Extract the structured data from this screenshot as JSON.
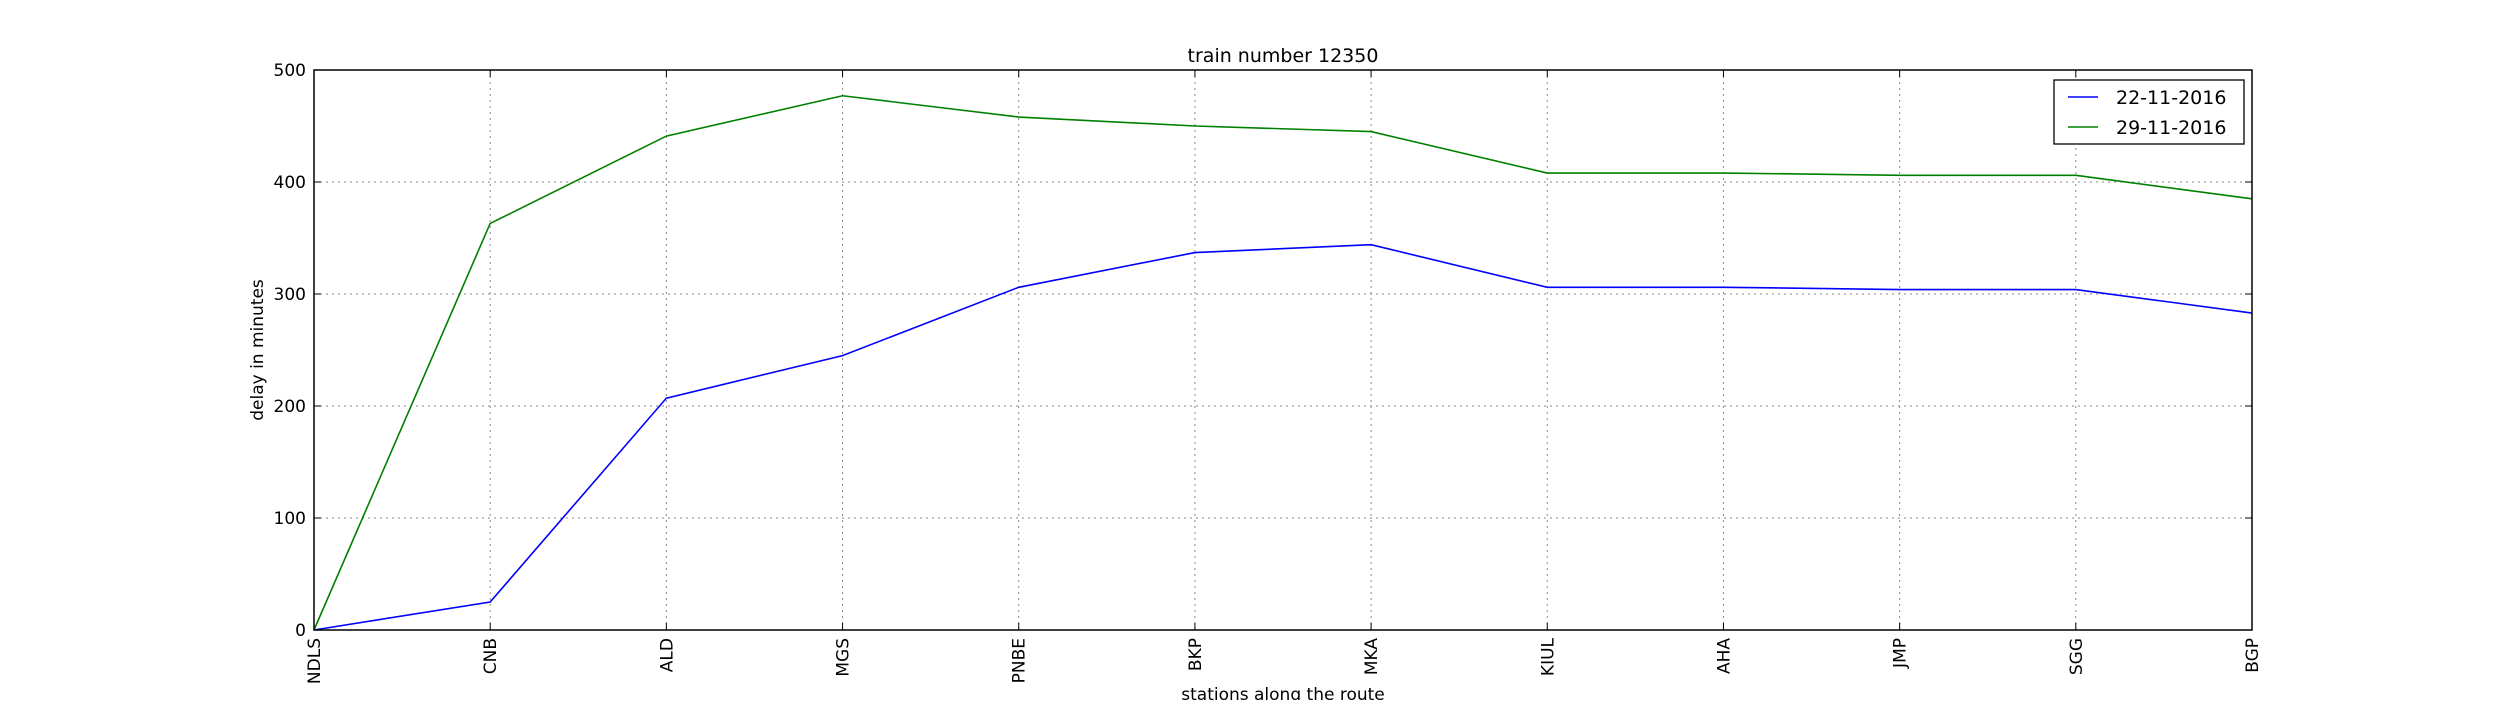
{
  "chart_data": {
    "type": "line",
    "title": "train number 12350",
    "xlabel": "stations along the route",
    "ylabel": "delay in minutes",
    "categories": [
      "NDLS",
      "CNB",
      "ALD",
      "MGS",
      "PNBE",
      "BKP",
      "MKA",
      "KIUL",
      "AHA",
      "JMP",
      "SGG",
      "BGP"
    ],
    "ylim": [
      0,
      500
    ],
    "yticks": [
      "0",
      "100",
      "200",
      "300",
      "400",
      "500"
    ],
    "grid": true,
    "legend_position": "top-right",
    "series": [
      {
        "name": "22-11-2016",
        "color": "#0000ff",
        "values": [
          0,
          25,
          207,
          245,
          306,
          337,
          344,
          306,
          306,
          304,
          304,
          283
        ]
      },
      {
        "name": "29-11-2016",
        "color": "#008000",
        "values": [
          0,
          363,
          441,
          477,
          458,
          450,
          445,
          408,
          408,
          406,
          406,
          385
        ]
      }
    ]
  }
}
